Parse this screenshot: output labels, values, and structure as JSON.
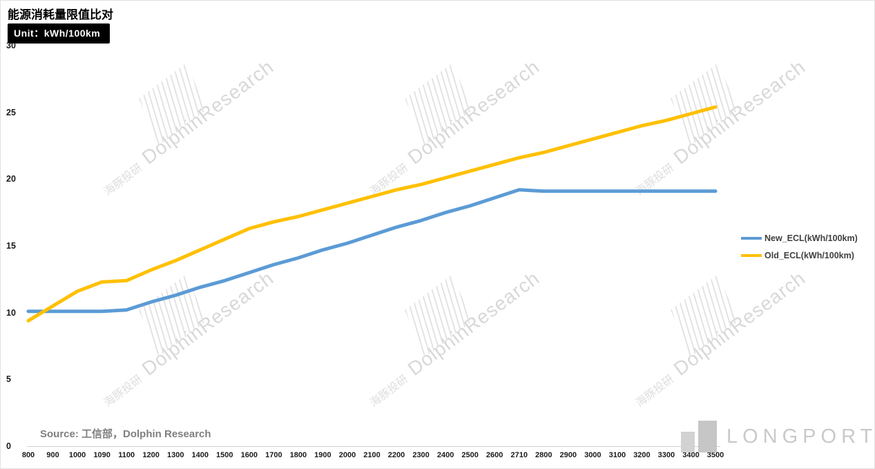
{
  "header": {
    "title": "能源消耗量限值比对",
    "unit_label": "Unit：kWh/100km"
  },
  "source": "Source: 工信部，Dolphin Research",
  "watermark": {
    "cn": "海豚投研",
    "en": "DolphinResearch"
  },
  "logo": "LONGPORT",
  "colors": {
    "new_ecl": "#5B9BD5",
    "old_ecl": "#FFC000"
  },
  "chart_data": {
    "type": "line",
    "title": "能源消耗量限值比对",
    "xlabel": "",
    "ylabel": "kWh/100km",
    "ylim": [
      0,
      30
    ],
    "y_ticks": [
      0,
      5,
      10,
      15,
      20,
      25,
      30
    ],
    "grid": false,
    "legend_position": "right",
    "categories": [
      "800",
      "900",
      "1000",
      "1090",
      "1100",
      "1200",
      "1300",
      "1400",
      "1500",
      "1600",
      "1700",
      "1800",
      "1900",
      "2000",
      "2100",
      "2200",
      "2300",
      "2400",
      "2500",
      "2600",
      "2710",
      "2800",
      "2900",
      "3000",
      "3100",
      "3200",
      "3300",
      "3400",
      "3500"
    ],
    "series": [
      {
        "name": "New_ECL(kWh/100km)",
        "color": "#5B9BD5",
        "values": [
          10.1,
          10.1,
          10.1,
          10.1,
          10.2,
          10.8,
          11.3,
          11.9,
          12.4,
          13.0,
          13.6,
          14.1,
          14.7,
          15.2,
          15.8,
          16.4,
          16.9,
          17.5,
          18.0,
          18.6,
          19.2,
          19.1,
          19.1,
          19.1,
          19.1,
          19.1,
          19.1,
          19.1,
          19.1
        ]
      },
      {
        "name": "Old_ECL(kWh/100km)",
        "color": "#FFC000",
        "values": [
          9.4,
          10.5,
          11.6,
          12.3,
          12.4,
          13.2,
          13.9,
          14.7,
          15.5,
          16.3,
          16.8,
          17.2,
          17.7,
          18.2,
          18.7,
          19.2,
          19.6,
          20.1,
          20.6,
          21.1,
          21.6,
          22.0,
          22.5,
          23.0,
          23.5,
          24.0,
          24.4,
          24.9,
          25.4
        ]
      }
    ]
  }
}
